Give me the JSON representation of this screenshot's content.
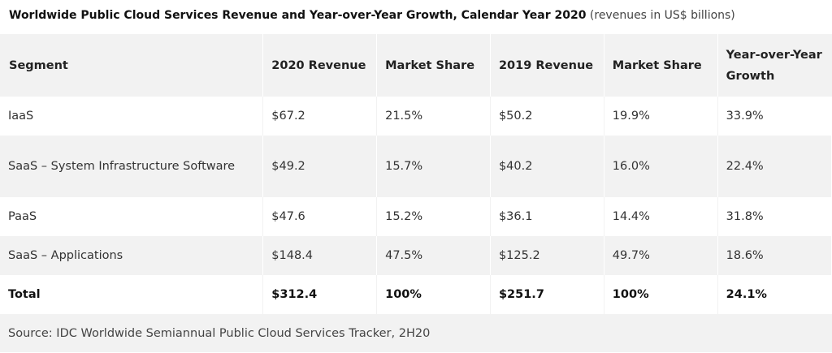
{
  "caption": {
    "title": "Worldwide Public Cloud Services Revenue and Year-over-Year Growth, Calendar Year 2020",
    "note": " (revenues in US$ billions)"
  },
  "table": {
    "headers": [
      "Segment",
      "2020 Revenue",
      "Market Share",
      "2019 Revenue",
      "Market Share",
      "Year-over-Year Growth"
    ],
    "rows": [
      [
        "IaaS",
        "$67.2",
        "21.5%",
        "$50.2",
        "19.9%",
        "33.9%"
      ],
      [
        "SaaS – System Infrastructure Software",
        "$49.2",
        "15.7%",
        "$40.2",
        "16.0%",
        "22.4%"
      ],
      [
        "PaaS",
        "$47.6",
        "15.2%",
        "$36.1",
        "14.4%",
        "31.8%"
      ],
      [
        "SaaS – Applications",
        "$148.4",
        "47.5%",
        "$125.2",
        "49.7%",
        "18.6%"
      ]
    ],
    "total": [
      "Total",
      "$312.4",
      "100%",
      "$251.7",
      "100%",
      "24.1%"
    ],
    "source": "Source: IDC Worldwide Semiannual Public Cloud Services Tracker, 2H20"
  }
}
